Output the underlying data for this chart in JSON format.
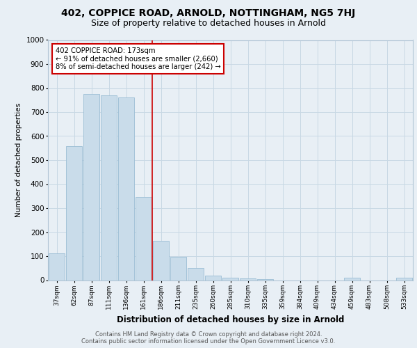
{
  "title1": "402, COPPICE ROAD, ARNOLD, NOTTINGHAM, NG5 7HJ",
  "title2": "Size of property relative to detached houses in Arnold",
  "xlabel": "Distribution of detached houses by size in Arnold",
  "ylabel": "Number of detached properties",
  "categories": [
    "37sqm",
    "62sqm",
    "87sqm",
    "111sqm",
    "136sqm",
    "161sqm",
    "186sqm",
    "211sqm",
    "235sqm",
    "260sqm",
    "285sqm",
    "310sqm",
    "335sqm",
    "359sqm",
    "384sqm",
    "409sqm",
    "434sqm",
    "459sqm",
    "483sqm",
    "508sqm",
    "533sqm"
  ],
  "values": [
    112,
    558,
    775,
    770,
    760,
    345,
    165,
    97,
    52,
    18,
    10,
    8,
    5,
    0,
    0,
    0,
    0,
    10,
    0,
    0,
    10
  ],
  "bar_color": "#c9dcea",
  "bar_edge_color": "#9bbdd4",
  "vline_x_index": 5.5,
  "vline_color": "#cc0000",
  "annotation_text": "402 COPPICE ROAD: 173sqm\n← 91% of detached houses are smaller (2,660)\n8% of semi-detached houses are larger (242) →",
  "annotation_box_color": "#ffffff",
  "annotation_box_edge_color": "#cc0000",
  "footer": "Contains HM Land Registry data © Crown copyright and database right 2024.\nContains public sector information licensed under the Open Government Licence v3.0.",
  "bg_color": "#e8eff5",
  "plot_bg_color": "#e8eff5",
  "title_fontsize": 10,
  "subtitle_fontsize": 9,
  "ylim": [
    0,
    1000
  ],
  "yticks": [
    0,
    100,
    200,
    300,
    400,
    500,
    600,
    700,
    800,
    900,
    1000
  ]
}
